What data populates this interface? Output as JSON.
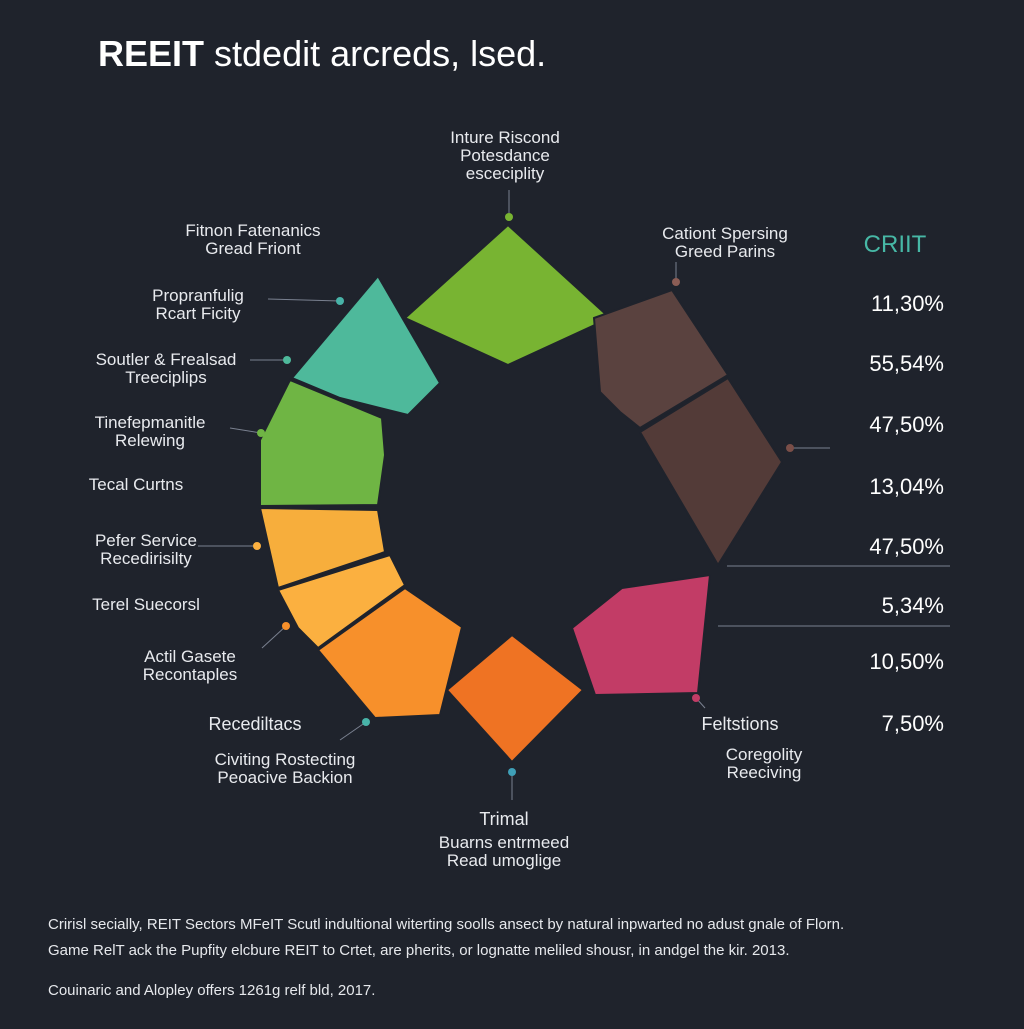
{
  "title_bold": "REEIT",
  "title_rest": " stdedit arcreds, lsed.",
  "colors": {
    "background": "#1f232c",
    "text": "#e8eaee",
    "accent": "#47b8a6",
    "leader": "#7a8190"
  },
  "chart_data": {
    "type": "pie",
    "title": "REEIT stdedit arcreds, lsed.",
    "segments": [
      {
        "label": [
          "Inture Riscond",
          "Potesdance",
          "esceciplity"
        ],
        "color": "#78b432"
      },
      {
        "label": [
          "Cationt Spersing",
          "Greed Parins"
        ],
        "color": "#5a423f"
      },
      {
        "label": [],
        "color": "#533b38"
      },
      {
        "label": [
          "Feltstions"
        ],
        "color": "#c23c66"
      },
      {
        "label": [
          "Trimal"
        ],
        "color": "#ef7323"
      },
      {
        "label": [
          "Recediltacs"
        ],
        "color": "#f7902b"
      },
      {
        "label": [
          "Actil Gasete",
          "Recontaples"
        ],
        "color": "#fbb040"
      },
      {
        "label": [
          "Pefer Service",
          "Recedirisilty"
        ],
        "color": "#f7ae3c"
      },
      {
        "label": [
          "Tinefepmanitle",
          "Relewing"
        ],
        "color": "#6fb544"
      },
      {
        "label": [
          "Soutler & Frealsad",
          "Treeciplips"
        ],
        "color": "#4eb99b"
      }
    ],
    "side_labels": [
      [
        "Fitnon Fatenanics",
        "Gread Friont"
      ],
      [
        "Propranfulig",
        "Rcart Ficity"
      ],
      [
        "Tecal Curtns"
      ],
      [
        "Terel Suecorsl"
      ],
      [
        "Civiting Rostecting",
        "Peoacive Backion"
      ],
      [
        "Buarns entrmeed",
        "Read umoglige"
      ],
      [
        "Coregolity",
        "Reeciving"
      ]
    ],
    "legend_title": "CRIIT",
    "legend_values": [
      "11,30%",
      "55,54%",
      "47,50%",
      "13,04%",
      "47,50%",
      "5,34%",
      "10,50%",
      "7,50%"
    ]
  },
  "footnotes": [
    "Cririsl secially, REIT Sectors MFeIT Scutl indultional witerting soolls ansect by natural inpwarted no adust gnale of Florn.",
    "Game RelT ack the Pupfity elcbure REIT to Crtet, are pherits, or lognatte meliled shousr, in andgel the kir. 2013.",
    "Couinaric and Alopley offers 1261g relf bld, 2017."
  ]
}
